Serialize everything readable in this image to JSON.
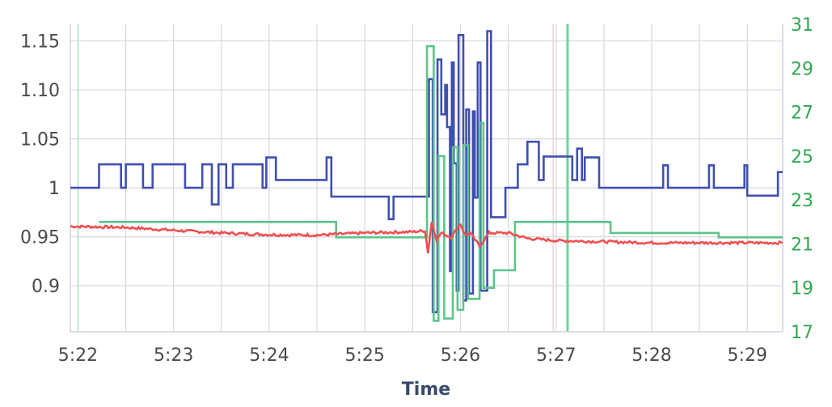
{
  "chart_data": {
    "type": "line",
    "xlabel": "Time",
    "x_ticks": [
      "5:22",
      "5:23",
      "5:24",
      "5:25",
      "5:26",
      "5:27",
      "5:28",
      "5:29"
    ],
    "x_range_min": [
      21.92,
      29.37
    ],
    "y_left": {
      "ticks": [
        "0.9",
        "0.95",
        "1",
        "1.05",
        "1.10",
        "1.15"
      ],
      "range": [
        0.853,
        1.167
      ]
    },
    "y_right": {
      "ticks": [
        "17",
        "19",
        "21",
        "23",
        "25",
        "27",
        "29",
        "31"
      ],
      "range": [
        17,
        31
      ],
      "color": "#2fa84f"
    },
    "grid": true,
    "colors": {
      "blue": "#3f4fb0",
      "green": "#5cc48a",
      "red": "#f0504f",
      "grid": "#d8d8e0"
    },
    "series": [
      {
        "color_key": "blue",
        "axis": "left",
        "points": [
          [
            21.92,
            1.0
          ],
          [
            22.22,
            1.0
          ],
          [
            22.22,
            1.024
          ],
          [
            22.45,
            1.024
          ],
          [
            22.45,
            1.0
          ],
          [
            22.5,
            1.0
          ],
          [
            22.5,
            1.024
          ],
          [
            22.68,
            1.024
          ],
          [
            22.68,
            1.0
          ],
          [
            22.78,
            1.0
          ],
          [
            22.78,
            1.024
          ],
          [
            23.12,
            1.024
          ],
          [
            23.12,
            1.0
          ],
          [
            23.3,
            1.0
          ],
          [
            23.3,
            1.024
          ],
          [
            23.4,
            1.024
          ],
          [
            23.4,
            0.983
          ],
          [
            23.47,
            0.983
          ],
          [
            23.47,
            1.024
          ],
          [
            23.55,
            1.024
          ],
          [
            23.55,
            1.0
          ],
          [
            23.62,
            1.0
          ],
          [
            23.62,
            1.024
          ],
          [
            23.93,
            1.024
          ],
          [
            23.93,
            1.0
          ],
          [
            23.97,
            1.0
          ],
          [
            23.97,
            1.031
          ],
          [
            24.07,
            1.031
          ],
          [
            24.07,
            1.008
          ],
          [
            24.6,
            1.008
          ],
          [
            24.6,
            1.031
          ],
          [
            24.65,
            1.031
          ],
          [
            24.65,
            0.991
          ],
          [
            25.25,
            0.991
          ],
          [
            25.25,
            0.968
          ],
          [
            25.3,
            0.968
          ],
          [
            25.3,
            0.991
          ],
          [
            25.67,
            0.991
          ],
          [
            25.67,
            1.111
          ],
          [
            25.71,
            1.111
          ],
          [
            25.71,
            0.873
          ],
          [
            25.76,
            0.873
          ],
          [
            25.76,
            1.131
          ],
          [
            25.8,
            1.131
          ],
          [
            25.8,
            1.075
          ],
          [
            25.84,
            1.075
          ],
          [
            25.84,
            1.105
          ],
          [
            25.86,
            1.105
          ],
          [
            25.86,
            1.062
          ],
          [
            25.89,
            1.062
          ],
          [
            25.89,
            0.915
          ],
          [
            25.91,
            0.915
          ],
          [
            25.91,
            1.128
          ],
          [
            25.93,
            1.128
          ],
          [
            25.93,
            1.025
          ],
          [
            25.96,
            1.025
          ],
          [
            25.96,
            0.895
          ],
          [
            25.98,
            0.895
          ],
          [
            25.98,
            1.156
          ],
          [
            26.03,
            1.156
          ],
          [
            26.03,
            0.885
          ],
          [
            26.06,
            0.885
          ],
          [
            26.06,
            1.08
          ],
          [
            26.09,
            1.08
          ],
          [
            26.09,
            0.892
          ],
          [
            26.13,
            0.892
          ],
          [
            26.13,
            1.078
          ],
          [
            26.15,
            1.078
          ],
          [
            26.15,
            0.99
          ],
          [
            26.18,
            0.99
          ],
          [
            26.18,
            1.128
          ],
          [
            26.21,
            1.128
          ],
          [
            26.21,
            0.895
          ],
          [
            26.28,
            0.895
          ],
          [
            26.28,
            1.16
          ],
          [
            26.32,
            1.16
          ],
          [
            26.32,
            0.97
          ],
          [
            26.47,
            0.97
          ],
          [
            26.47,
            1.0
          ],
          [
            26.6,
            1.0
          ],
          [
            26.6,
            1.024
          ],
          [
            26.7,
            1.024
          ],
          [
            26.7,
            1.047
          ],
          [
            26.82,
            1.047
          ],
          [
            26.82,
            1.008
          ],
          [
            26.87,
            1.008
          ],
          [
            26.87,
            1.032
          ],
          [
            27.17,
            1.032
          ],
          [
            27.17,
            1.008
          ],
          [
            27.22,
            1.008
          ],
          [
            27.22,
            1.04
          ],
          [
            27.27,
            1.04
          ],
          [
            27.27,
            1.008
          ],
          [
            27.3,
            1.008
          ],
          [
            27.3,
            1.031
          ],
          [
            27.45,
            1.031
          ],
          [
            27.45,
            1.0
          ],
          [
            28.12,
            1.0
          ],
          [
            28.12,
            1.023
          ],
          [
            28.17,
            1.023
          ],
          [
            28.17,
            1.0
          ],
          [
            28.6,
            1.0
          ],
          [
            28.6,
            1.023
          ],
          [
            28.65,
            1.023
          ],
          [
            28.65,
            1.0
          ],
          [
            28.97,
            1.0
          ],
          [
            28.97,
            1.023
          ],
          [
            29.0,
            1.023
          ],
          [
            29.0,
            0.992
          ],
          [
            29.32,
            0.992
          ],
          [
            29.32,
            1.016
          ],
          [
            29.37,
            1.016
          ]
        ]
      },
      {
        "color_key": "green",
        "axis": "right",
        "points": [
          [
            22.22,
            22.0
          ],
          [
            24.7,
            22.0
          ],
          [
            24.7,
            21.3
          ],
          [
            25.65,
            21.3
          ],
          [
            25.65,
            30.0
          ],
          [
            25.72,
            30.0
          ],
          [
            25.72,
            17.5
          ],
          [
            25.77,
            17.5
          ],
          [
            25.77,
            25.0
          ],
          [
            25.83,
            25.0
          ],
          [
            25.83,
            17.6
          ],
          [
            25.92,
            17.6
          ],
          [
            25.92,
            25.4
          ],
          [
            25.97,
            25.4
          ],
          [
            25.97,
            18.0
          ],
          [
            26.03,
            18.0
          ],
          [
            26.03,
            25.5
          ],
          [
            26.08,
            25.5
          ],
          [
            26.08,
            18.5
          ],
          [
            26.2,
            18.5
          ],
          [
            26.2,
            26.5
          ],
          [
            26.24,
            26.5
          ],
          [
            26.24,
            19.0
          ],
          [
            26.35,
            19.0
          ],
          [
            26.35,
            19.8
          ],
          [
            26.57,
            19.8
          ],
          [
            26.57,
            22.0
          ],
          [
            27.57,
            22.0
          ],
          [
            27.57,
            21.5
          ],
          [
            28.7,
            21.5
          ],
          [
            28.7,
            21.3
          ],
          [
            29.37,
            21.3
          ]
        ]
      },
      {
        "color_key": "red",
        "axis": "right",
        "noisy": true,
        "points": [
          [
            21.92,
            21.8
          ],
          [
            22.5,
            21.75
          ],
          [
            23.0,
            21.62
          ],
          [
            23.5,
            21.5
          ],
          [
            24.0,
            21.42
          ],
          [
            24.5,
            21.4
          ],
          [
            25.0,
            21.5
          ],
          [
            25.5,
            21.55
          ],
          [
            25.63,
            21.6
          ],
          [
            25.66,
            20.6
          ],
          [
            25.7,
            22.0
          ],
          [
            25.75,
            21.2
          ],
          [
            25.8,
            21.5
          ],
          [
            25.9,
            21.3
          ],
          [
            26.0,
            21.9
          ],
          [
            26.05,
            21.4
          ],
          [
            26.1,
            21.5
          ],
          [
            26.2,
            20.9
          ],
          [
            26.3,
            21.5
          ],
          [
            26.5,
            21.5
          ],
          [
            26.7,
            21.25
          ],
          [
            27.0,
            21.15
          ],
          [
            27.5,
            21.1
          ],
          [
            28.0,
            21.05
          ],
          [
            28.5,
            21.05
          ],
          [
            29.0,
            21.05
          ],
          [
            29.37,
            21.05
          ]
        ]
      }
    ]
  }
}
